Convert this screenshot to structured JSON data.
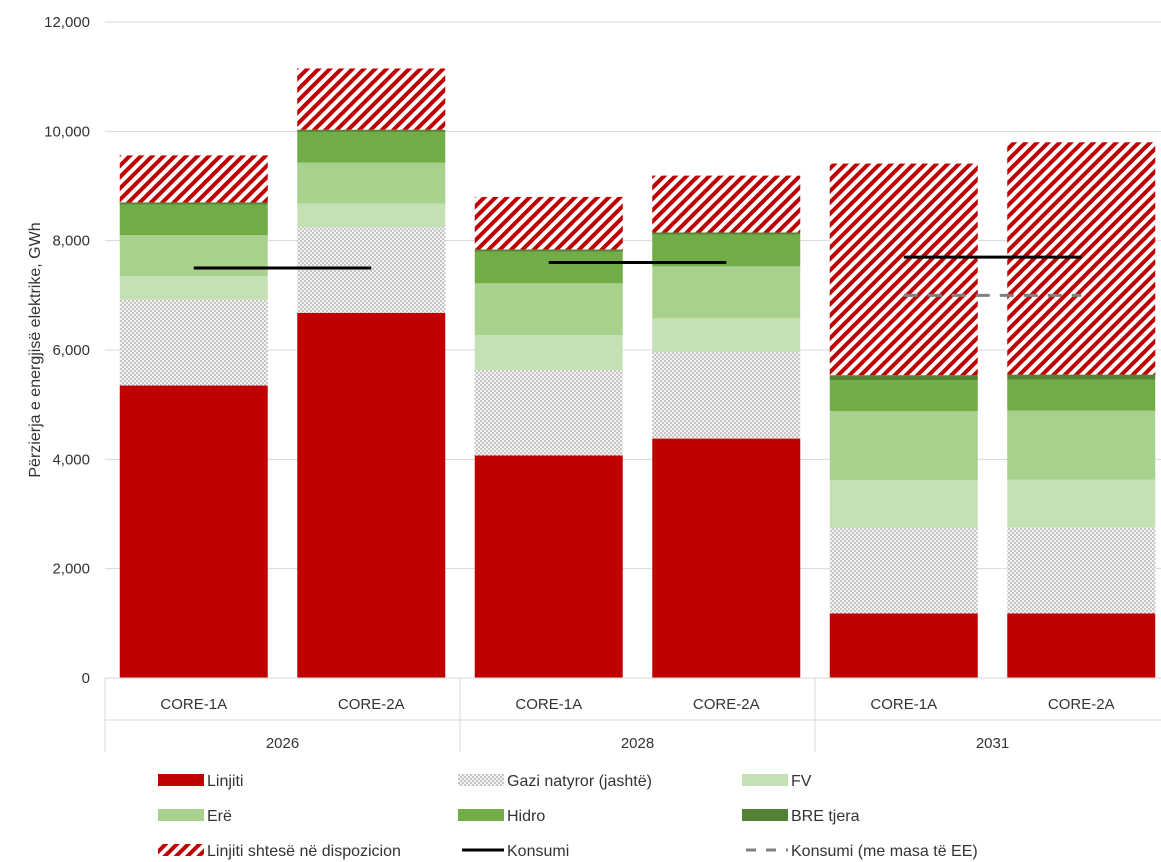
{
  "chart_data": {
    "type": "bar",
    "stacked": true,
    "title": "",
    "ylabel": "Përzierja e energjisë elektrike, GWh",
    "xlabel": "",
    "ylim": [
      0,
      12000
    ],
    "yticks": [
      0,
      2000,
      4000,
      6000,
      8000,
      10000,
      12000
    ],
    "ytick_labels": [
      "0",
      "2,000",
      "4,000",
      "6,000",
      "8,000",
      "10,000",
      "12,000"
    ],
    "grid": true,
    "legend_position": "bottom",
    "groups": [
      {
        "label": "2026",
        "categories": [
          "CORE-1A",
          "CORE-2A"
        ]
      },
      {
        "label": "2028",
        "categories": [
          "CORE-1A",
          "CORE-2A"
        ]
      },
      {
        "label": "2031",
        "categories": [
          "CORE-1A",
          "CORE-2A"
        ]
      }
    ],
    "series": [
      {
        "name": "Linjiti",
        "color": "#c00000",
        "pattern": "solid",
        "values": [
          5350,
          6680,
          4070,
          4380,
          1180,
          1180
        ]
      },
      {
        "name": "Gazi natyror (jashtë)",
        "color": "#bfbfbf",
        "pattern": "dots",
        "values": [
          1570,
          1570,
          1560,
          1580,
          1560,
          1570
        ]
      },
      {
        "name": "FV",
        "color": "#c5e0b4",
        "pattern": "solid",
        "values": [
          430,
          430,
          640,
          620,
          880,
          880
        ]
      },
      {
        "name": "Erë",
        "color": "#a9d18e",
        "pattern": "solid",
        "values": [
          750,
          750,
          950,
          950,
          1260,
          1260
        ]
      },
      {
        "name": "Hidro",
        "color": "#70ad47",
        "pattern": "solid",
        "values": [
          560,
          560,
          580,
          580,
          570,
          570
        ]
      },
      {
        "name": "BRE tjera",
        "color": "#548235",
        "pattern": "solid",
        "values": [
          40,
          40,
          40,
          40,
          90,
          90
        ]
      },
      {
        "name": "Linjiti shtesë në dispozicion",
        "color": "#c00000",
        "pattern": "hatch",
        "values": [
          860,
          1120,
          960,
          1040,
          3870,
          4250
        ]
      }
    ],
    "lines": [
      {
        "name": "Konsumi",
        "color": "#000000",
        "style": "solid",
        "values": [
          7500,
          7600,
          7700
        ]
      },
      {
        "name": "Konsumi (me masa të EE)",
        "color": "#808080",
        "style": "dashed",
        "values": [
          null,
          null,
          7000
        ]
      }
    ],
    "legend": [
      "Linjiti",
      "Gazi natyror (jashtë)",
      "FV",
      "Erë",
      "Hidro",
      "BRE tjera",
      "Linjiti shtesë në dispozicion",
      "Konsumi",
      "Konsumi (me masa të EE)"
    ]
  }
}
